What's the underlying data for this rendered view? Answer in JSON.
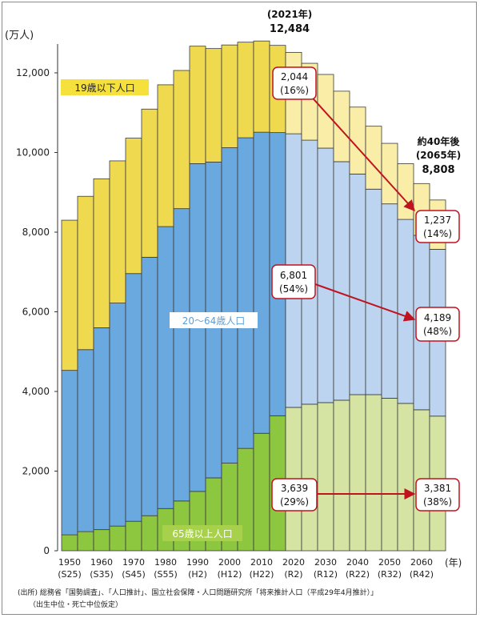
{
  "chart_data": {
    "type": "bar",
    "stacked": true,
    "y_unit_label": "(万人)",
    "x_unit_label": "(年)",
    "ylim": [
      0,
      12800
    ],
    "yticks": [
      0,
      2000,
      4000,
      6000,
      8000,
      10000,
      12000
    ],
    "ytick_labels": [
      "0",
      "2,000",
      "4,000",
      "6,000",
      "8,000",
      "10,000",
      "12,000"
    ],
    "categories": [
      1950,
      1955,
      1960,
      1965,
      1970,
      1975,
      1980,
      1985,
      1990,
      1995,
      2000,
      2005,
      2010,
      2015,
      2020,
      2025,
      2030,
      2035,
      2040,
      2045,
      2050,
      2055,
      2060,
      2065
    ],
    "x_labels": [
      {
        "year": "1950",
        "era": "(S25)"
      },
      {
        "year": "1960",
        "era": "(S35)"
      },
      {
        "year": "1970",
        "era": "(S45)"
      },
      {
        "year": "1980",
        "era": "(S55)"
      },
      {
        "year": "1990",
        "era": "(H2)"
      },
      {
        "year": "2000",
        "era": "(H12)"
      },
      {
        "year": "2010",
        "era": "(H22)"
      },
      {
        "year": "2020",
        "era": "(R2)"
      },
      {
        "year": "2030",
        "era": "(R12)"
      },
      {
        "year": "2040",
        "era": "(R22)"
      },
      {
        "year": "2050",
        "era": "(R32)"
      },
      {
        "year": "2060",
        "era": "(R42)"
      }
    ],
    "projection_start_index": 14,
    "series": [
      {
        "name": "65歳以上人口",
        "color": "#8dc63f",
        "projected_color": "#d6e4a3",
        "values": [
          400,
          480,
          530,
          620,
          740,
          880,
          1060,
          1250,
          1490,
          1830,
          2200,
          2570,
          2950,
          3390,
          3600,
          3680,
          3720,
          3780,
          3920,
          3920,
          3830,
          3700,
          3540,
          3381
        ]
      },
      {
        "name": "20～64歳人口",
        "color": "#6aa9e0",
        "projected_color": "#bdd4f0",
        "values": [
          4130,
          4570,
          5070,
          5600,
          6220,
          6490,
          7080,
          7340,
          8230,
          7930,
          7920,
          7800,
          7560,
          7110,
          6870,
          6630,
          6390,
          5990,
          5540,
          5160,
          4880,
          4620,
          4380,
          4189
        ]
      },
      {
        "name": "19歳以下人口",
        "color": "#efd94e",
        "projected_color": "#f9eda8",
        "values": [
          3770,
          3850,
          3740,
          3570,
          3400,
          3720,
          3560,
          3470,
          2950,
          2850,
          2580,
          2400,
          2290,
          2190,
          2044,
          1930,
          1850,
          1770,
          1680,
          1580,
          1520,
          1400,
          1300,
          1237
        ]
      }
    ]
  },
  "texts": {
    "peak_year": "(2021年)",
    "peak_value": "12,484",
    "future_1": "約40年後",
    "future_2": "(2065年)",
    "future_3": "8,808",
    "label_young": "19歳以下人口",
    "label_working": "20～64歳人口",
    "label_elder": "65歳以上人口"
  },
  "callouts": {
    "young_2021_value": "2,044",
    "young_2021_pct": "(16%)",
    "young_2065_value": "1,237",
    "young_2065_pct": "(14%)",
    "working_2021_value": "6,801",
    "working_2021_pct": "(54%)",
    "working_2065_value": "4,189",
    "working_2065_pct": "(48%)",
    "elder_2021_value": "3,639",
    "elder_2021_pct": "(29%)",
    "elder_2065_value": "3,381",
    "elder_2065_pct": "(38%)"
  },
  "source": {
    "line1": "(出所) 総務省「国勢調査」、「人口推計」、国立社会保障・人口問題研究所「将来推計人口（平成29年4月推計）」",
    "line2": "（出生中位・死亡中位仮定）"
  },
  "colors": {
    "arrow": "#c1121f",
    "callout_border": "#c1121f",
    "label_young_bg": "#f5e03c",
    "label_working_bg": "#ffffff",
    "label_working_text": "#5a9fd8",
    "label_elder_bg": "#a7d14a",
    "label_elder_text": "#ffffff"
  }
}
